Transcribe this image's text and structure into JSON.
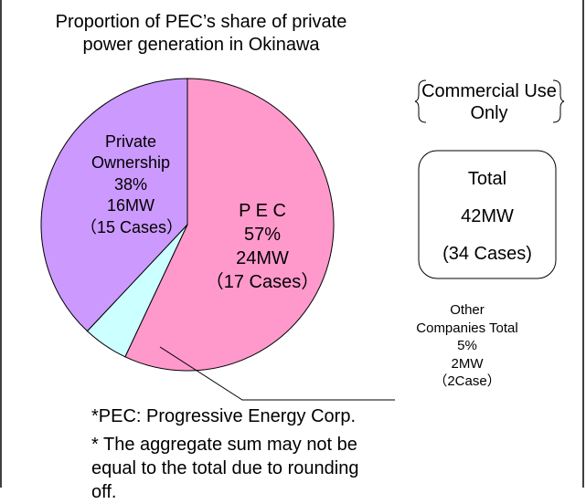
{
  "chart_data": {
    "type": "pie",
    "title": "Proportion of PEC’s share of private power generation in Okinawa",
    "categories": [
      "P E C",
      "Other Companies Total",
      "Private Ownership"
    ],
    "values": [
      57,
      5,
      38
    ],
    "value_labels": [
      "57%",
      "5%",
      "38%"
    ],
    "colors": [
      "#ff99cc",
      "#ccffff",
      "#cc99ff"
    ],
    "capacity": [
      "24MW",
      "2MW",
      "16MW"
    ],
    "cases": [
      "（17 Cases）",
      "（2Case）",
      "（15 Cases）"
    ],
    "scope": "Commercial Use Only",
    "total": {
      "label": "Total",
      "capacity": "42MW",
      "cases": "(34 Cases)"
    },
    "notes": [
      "*PEC: Progressive Energy Corp.",
      "* The aggregate sum may not be equal to the total due to rounding off."
    ]
  }
}
